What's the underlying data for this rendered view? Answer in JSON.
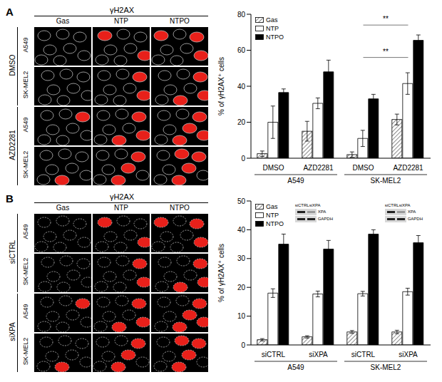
{
  "chart_data": [
    {
      "type": "bar",
      "panel": "A",
      "categories": [
        "DMSO",
        "AZD2281",
        "DMSO",
        "AZD2281"
      ],
      "groups": [
        "A549",
        "A549",
        "SK-MEL2",
        "SK-MEL2"
      ],
      "y_label": "% of γH2AX⁺ cells",
      "ylim": [
        0,
        80
      ],
      "yticks": [
        0,
        20,
        40,
        60,
        80
      ],
      "legend": "upper left",
      "series": [
        {
          "name": "Gas",
          "color": "#8c8c8c",
          "values": [
            2.5,
            15,
            2,
            21.5
          ],
          "errors": [
            1.5,
            5.5,
            1.5,
            3
          ]
        },
        {
          "name": "NTP",
          "color": "#ffffff",
          "values": [
            20,
            30.5,
            11,
            41.5
          ],
          "errors": [
            9,
            3,
            4.5,
            6
          ]
        },
        {
          "name": "NTPO",
          "color": "#000000",
          "values": [
            36.5,
            48,
            33,
            65.5
          ],
          "errors": [
            2,
            6.5,
            2.5,
            3
          ]
        }
      ],
      "annotations": [
        {
          "text": "**",
          "from": 2,
          "to": 3,
          "y": 56
        },
        {
          "text": "**",
          "from": 2,
          "to": 3,
          "y": 74
        }
      ]
    },
    {
      "type": "bar",
      "panel": "B",
      "categories": [
        "siCTRL",
        "siXPA",
        "siCTRL",
        "siXPA"
      ],
      "groups": [
        "A549",
        "A549",
        "SK-MEL2",
        "SK-MEL2"
      ],
      "y_label": "% of γH2AX⁺ cells",
      "ylim": [
        0,
        50
      ],
      "yticks": [
        0,
        10,
        20,
        30,
        40,
        50
      ],
      "legend": "upper left",
      "series": [
        {
          "name": "Gas",
          "color": "#8c8c8c",
          "values": [
            1.8,
            2.8,
            4.5,
            4.5
          ],
          "errors": [
            0.4,
            0.4,
            0.5,
            0.6
          ]
        },
        {
          "name": "NTP",
          "color": "#ffffff",
          "values": [
            18,
            17.7,
            17.8,
            18.5
          ],
          "errors": [
            1.5,
            1,
            0.8,
            1.2
          ]
        },
        {
          "name": "NTPO",
          "color": "#000000",
          "values": [
            35,
            33.3,
            38.5,
            35.5
          ],
          "errors": [
            3.5,
            3,
            1.5,
            2.5
          ]
        }
      ],
      "insets": [
        {
          "group": "A549",
          "lanes": [
            "siCTRL",
            "siXPA"
          ],
          "bands": [
            "XPA",
            "GAPDH"
          ]
        },
        {
          "group": "SK-MEL2",
          "lanes": [
            "siCTRL",
            "siXPA"
          ],
          "bands": [
            "XPA",
            "GAPDH"
          ]
        }
      ]
    }
  ],
  "figure": {
    "panels": [
      {
        "label": "A",
        "stain": "γH2AX",
        "columns": [
          "Gas",
          "NTP",
          "NTPO"
        ],
        "rows": [
          {
            "condition": "DMSO",
            "cell_lines": [
              "A549",
              "SK-MEL2"
            ]
          },
          {
            "condition": "AZD2281",
            "cell_lines": [
              "A549",
              "SK-MEL2"
            ]
          }
        ]
      },
      {
        "label": "B",
        "stain": "γH2AX",
        "columns": [
          "Gas",
          "NTP",
          "NTPO"
        ],
        "rows": [
          {
            "condition": "siCTRL",
            "cell_lines": [
              "A549",
              "SK-MEL2"
            ]
          },
          {
            "condition": "siXPA",
            "cell_lines": [
              "A549",
              "SK-MEL2"
            ]
          }
        ]
      }
    ]
  }
}
